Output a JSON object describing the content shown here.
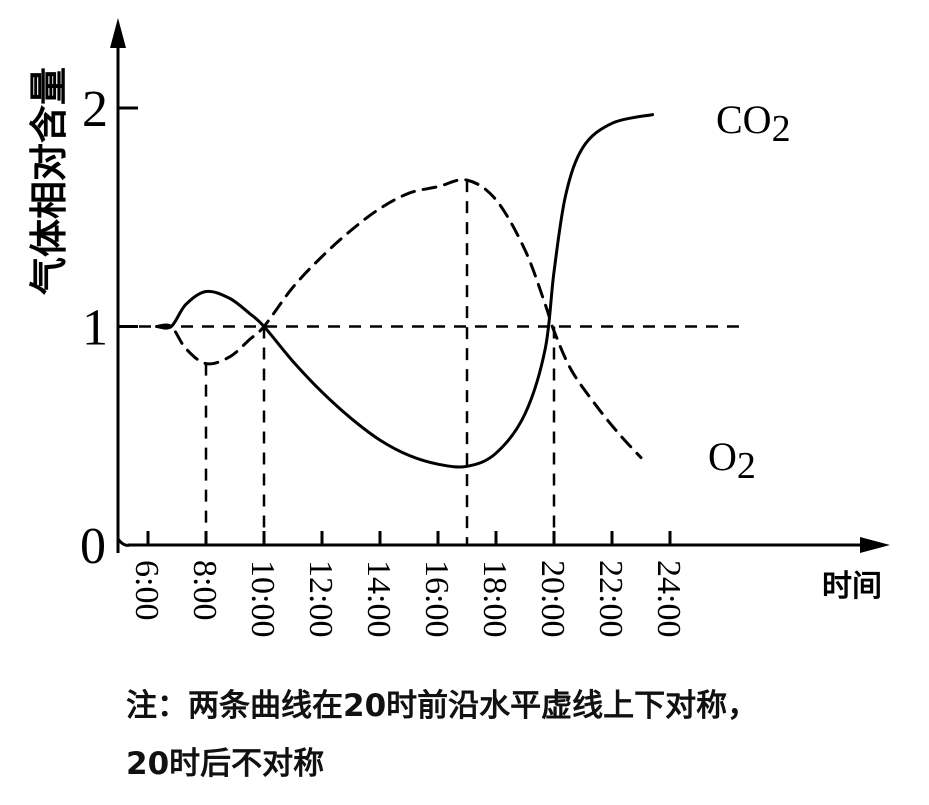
{
  "chart_data": {
    "type": "line",
    "ylabel": "气体相对含量",
    "xlabel": "时间",
    "xlim": [
      6,
      24
    ],
    "ylim": [
      0,
      2
    ],
    "x_ticks": [
      6,
      8,
      10,
      12,
      14,
      16,
      18,
      20,
      22,
      24
    ],
    "x_tick_labels": [
      "6:00",
      "8:00",
      "10:00",
      "12:00",
      "14:00",
      "16:00",
      "18:00",
      "20:00",
      "22:00",
      "24:00"
    ],
    "y_ticks": [
      0,
      1,
      2
    ],
    "y_tick_labels": [
      "0",
      "1",
      "2"
    ],
    "reference_line": {
      "y": 1,
      "style": "dashed"
    },
    "guide_lines_x": [
      8,
      10,
      17,
      20
    ],
    "series": [
      {
        "name": "CO",
        "name_sub": "2",
        "style": "solid",
        "points": [
          [
            6.3,
            1.0
          ],
          [
            6.8,
            1.0
          ],
          [
            7.3,
            1.1
          ],
          [
            8.0,
            1.16
          ],
          [
            8.8,
            1.13
          ],
          [
            9.5,
            1.06
          ],
          [
            10.0,
            1.0
          ],
          [
            11.0,
            0.84
          ],
          [
            12.0,
            0.7
          ],
          [
            13.0,
            0.58
          ],
          [
            14.0,
            0.48
          ],
          [
            15.0,
            0.41
          ],
          [
            16.0,
            0.37
          ],
          [
            17.0,
            0.36
          ],
          [
            18.0,
            0.42
          ],
          [
            19.0,
            0.6
          ],
          [
            19.7,
            0.9
          ],
          [
            20.0,
            1.25
          ],
          [
            20.4,
            1.6
          ],
          [
            21.0,
            1.82
          ],
          [
            22.0,
            1.93
          ],
          [
            23.4,
            1.97
          ]
        ]
      },
      {
        "name": "O",
        "name_sub": "2",
        "style": "dashed",
        "points": [
          [
            6.3,
            1.0
          ],
          [
            6.8,
            1.0
          ],
          [
            7.3,
            0.9
          ],
          [
            8.0,
            0.83
          ],
          [
            8.8,
            0.86
          ],
          [
            9.5,
            0.94
          ],
          [
            10.0,
            1.0
          ],
          [
            11.0,
            1.18
          ],
          [
            12.0,
            1.32
          ],
          [
            13.0,
            1.44
          ],
          [
            14.0,
            1.54
          ],
          [
            15.0,
            1.61
          ],
          [
            16.0,
            1.64
          ],
          [
            17.0,
            1.67
          ],
          [
            18.0,
            1.58
          ],
          [
            19.0,
            1.35
          ],
          [
            19.7,
            1.1
          ],
          [
            20.0,
            0.98
          ],
          [
            20.6,
            0.8
          ],
          [
            21.5,
            0.63
          ],
          [
            22.3,
            0.5
          ],
          [
            23.0,
            0.4
          ]
        ]
      }
    ],
    "annotations": [
      "注：两条曲线在20时前沿水平虚线上下对称，",
      "20时后不对称"
    ]
  }
}
